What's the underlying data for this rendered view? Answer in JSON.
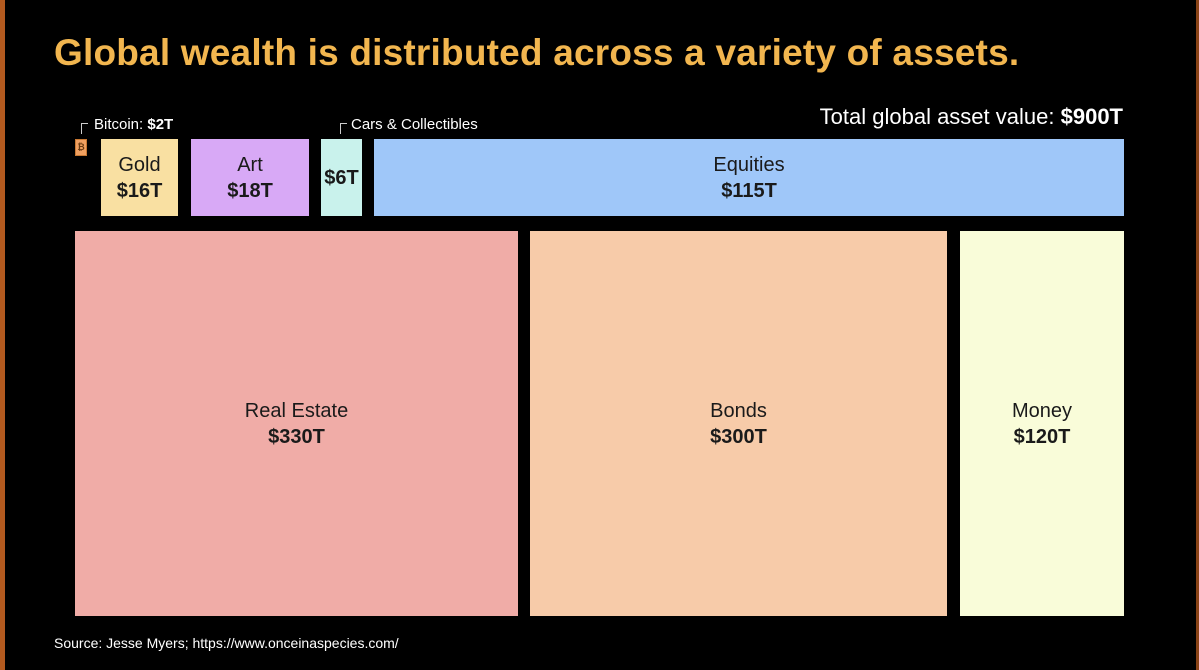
{
  "chart_data": {
    "type": "treemap",
    "title": "Global wealth is distributed across a variety of assets.",
    "total": {
      "label": "Total global asset value:",
      "value": "$900T"
    },
    "series": [
      {
        "name": "Bitcoin",
        "value_label": "$2T",
        "value": 2,
        "color": "#f0a060",
        "symbol": "₿"
      },
      {
        "name": "Gold",
        "value_label": "$16T",
        "value": 16,
        "color": "#f9e0a2"
      },
      {
        "name": "Art",
        "value_label": "$18T",
        "value": 18,
        "color": "#d8a9f6"
      },
      {
        "name": "Cars & Collectibles",
        "value_label": "$6T",
        "value": 6,
        "color": "#c9f2ec"
      },
      {
        "name": "Equities",
        "value_label": "$115T",
        "value": 115,
        "color": "#9fc7f9"
      },
      {
        "name": "Real Estate",
        "value_label": "$330T",
        "value": 330,
        "color": "#f0aca7"
      },
      {
        "name": "Bonds",
        "value_label": "$300T",
        "value": 300,
        "color": "#f7cba9"
      },
      {
        "name": "Money",
        "value_label": "$120T",
        "value": 120,
        "color": "#f9fcd9"
      }
    ],
    "source": "Source: Jesse Myers; https://www.onceinaspecies.com/"
  }
}
